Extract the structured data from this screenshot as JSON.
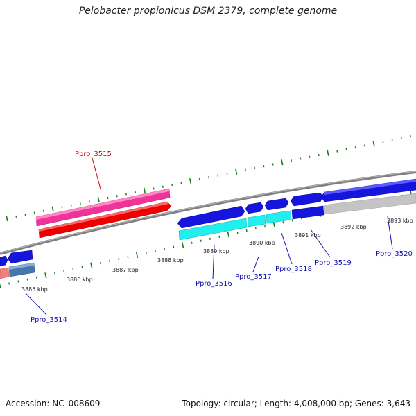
{
  "title": "Pelobacter propionicus DSM 2379, complete genome",
  "footer": {
    "accession": "Accession: NC_008609",
    "summary": "Topology: circular; Length: 4,008,000 bp; Genes: 3,643"
  },
  "colors": {
    "backbone": "#8a8a8a",
    "tick": "#1a7a1a",
    "label_blue": "#1111aa",
    "label_red": "#cc0000"
  },
  "scale_labels": [
    "3885 kbp",
    "3886 kbp",
    "3887 kbp",
    "3888 kbp",
    "3889 kbp",
    "3890 kbp",
    "3891 kbp",
    "3892 kbp",
    "3893 kbp"
  ],
  "gene_labels": [
    {
      "id": "Ppro_3514",
      "text": "Ppro_3514",
      "color": "blue"
    },
    {
      "id": "Ppro_3515",
      "text": "Ppro_3515",
      "color": "red"
    },
    {
      "id": "Ppro_3516",
      "text": "Ppro_3516",
      "color": "blue"
    },
    {
      "id": "Ppro_3517",
      "text": "Ppro_3517",
      "color": "blue"
    },
    {
      "id": "Ppro_3518",
      "text": "Ppro_3518",
      "color": "blue"
    },
    {
      "id": "Ppro_3519",
      "text": "Ppro_3519",
      "color": "blue"
    },
    {
      "id": "Ppro_3520",
      "text": "Ppro_3520",
      "color": "blue"
    }
  ]
}
